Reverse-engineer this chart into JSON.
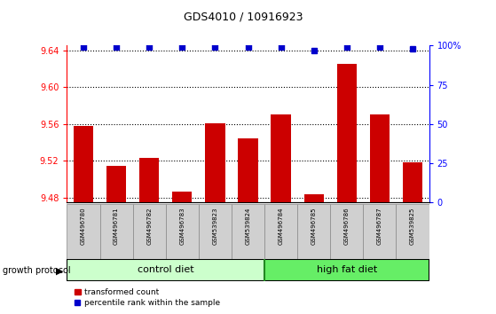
{
  "title": "GDS4010 / 10916923",
  "samples": [
    "GSM496780",
    "GSM496781",
    "GSM496782",
    "GSM496783",
    "GSM539823",
    "GSM539824",
    "GSM496784",
    "GSM496785",
    "GSM496786",
    "GSM496787",
    "GSM539825"
  ],
  "transformed_counts": [
    9.558,
    9.515,
    9.523,
    9.487,
    9.561,
    9.544,
    9.57,
    9.484,
    9.625,
    9.57,
    9.519
  ],
  "percentile_values": [
    99,
    99,
    99,
    99,
    99,
    99,
    99,
    97,
    99,
    99,
    98
  ],
  "ylim_left": [
    9.475,
    9.645
  ],
  "ylim_right": [
    0,
    100
  ],
  "yticks_left": [
    9.48,
    9.52,
    9.56,
    9.6,
    9.64
  ],
  "yticks_right": [
    0,
    25,
    50,
    75,
    100
  ],
  "ytick_labels_right": [
    "0",
    "25",
    "50",
    "75",
    "100%"
  ],
  "bar_color": "#cc0000",
  "dot_color": "#0000cc",
  "control_diet_samples": 6,
  "high_fat_samples": 5,
  "group_label_control": "control diet",
  "group_label_hf": "high fat diet",
  "group_protocol_label": "growth protocol",
  "legend_bar_label": "transformed count",
  "legend_dot_label": "percentile rank within the sample",
  "control_bg": "#ccffcc",
  "hf_bg": "#66ee66",
  "tick_bg": "#d0d0d0",
  "grid_color": "#000000",
  "figure_bg": "#ffffff"
}
